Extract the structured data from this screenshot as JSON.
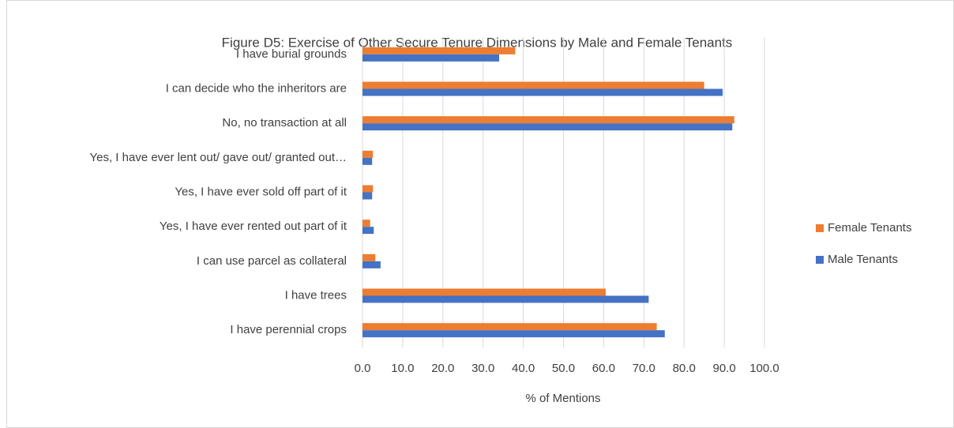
{
  "chart_data": {
    "type": "bar",
    "orientation": "horizontal",
    "title": "Figure D5: Exercise of Other Secure Tenure Dimensions by Male and Female Tenants",
    "x_label": "% of Mentions",
    "categories": [
      "I have burial grounds",
      "I can decide who the inheritors are",
      "No, no transaction at all",
      "Yes, I have ever lent out/ gave out/ granted out…",
      "Yes,  I have ever sold off part of it",
      "Yes, I have ever rented out part of it",
      "I can use parcel as collateral",
      "I have trees",
      "I have perennial crops"
    ],
    "series": [
      {
        "name": "Female Tenants",
        "color": "#ed7d31",
        "values": [
          38,
          85,
          92.5,
          2.6,
          2.6,
          1.9,
          3.2,
          60.5,
          73.2
        ]
      },
      {
        "name": "Male Tenants",
        "color": "#4472c4",
        "values": [
          34,
          89.6,
          92,
          2.4,
          2.4,
          2.8,
          4.5,
          71.2,
          75.2
        ]
      }
    ],
    "xlim": [
      0,
      100
    ],
    "xticks": [
      {
        "value": 0,
        "label": "0.0"
      },
      {
        "value": 10,
        "label": "10.0"
      },
      {
        "value": 20,
        "label": "20.0"
      },
      {
        "value": 30,
        "label": "30.0"
      },
      {
        "value": 40,
        "label": "40.0"
      },
      {
        "value": 50,
        "label": "50.0"
      },
      {
        "value": 60,
        "label": "60.0"
      },
      {
        "value": 70,
        "label": "70.0"
      },
      {
        "value": 80,
        "label": "80.0"
      },
      {
        "value": 90,
        "label": "90.0"
      },
      {
        "value": 100,
        "label": "100.0"
      }
    ],
    "grid": true,
    "legend": "right"
  }
}
